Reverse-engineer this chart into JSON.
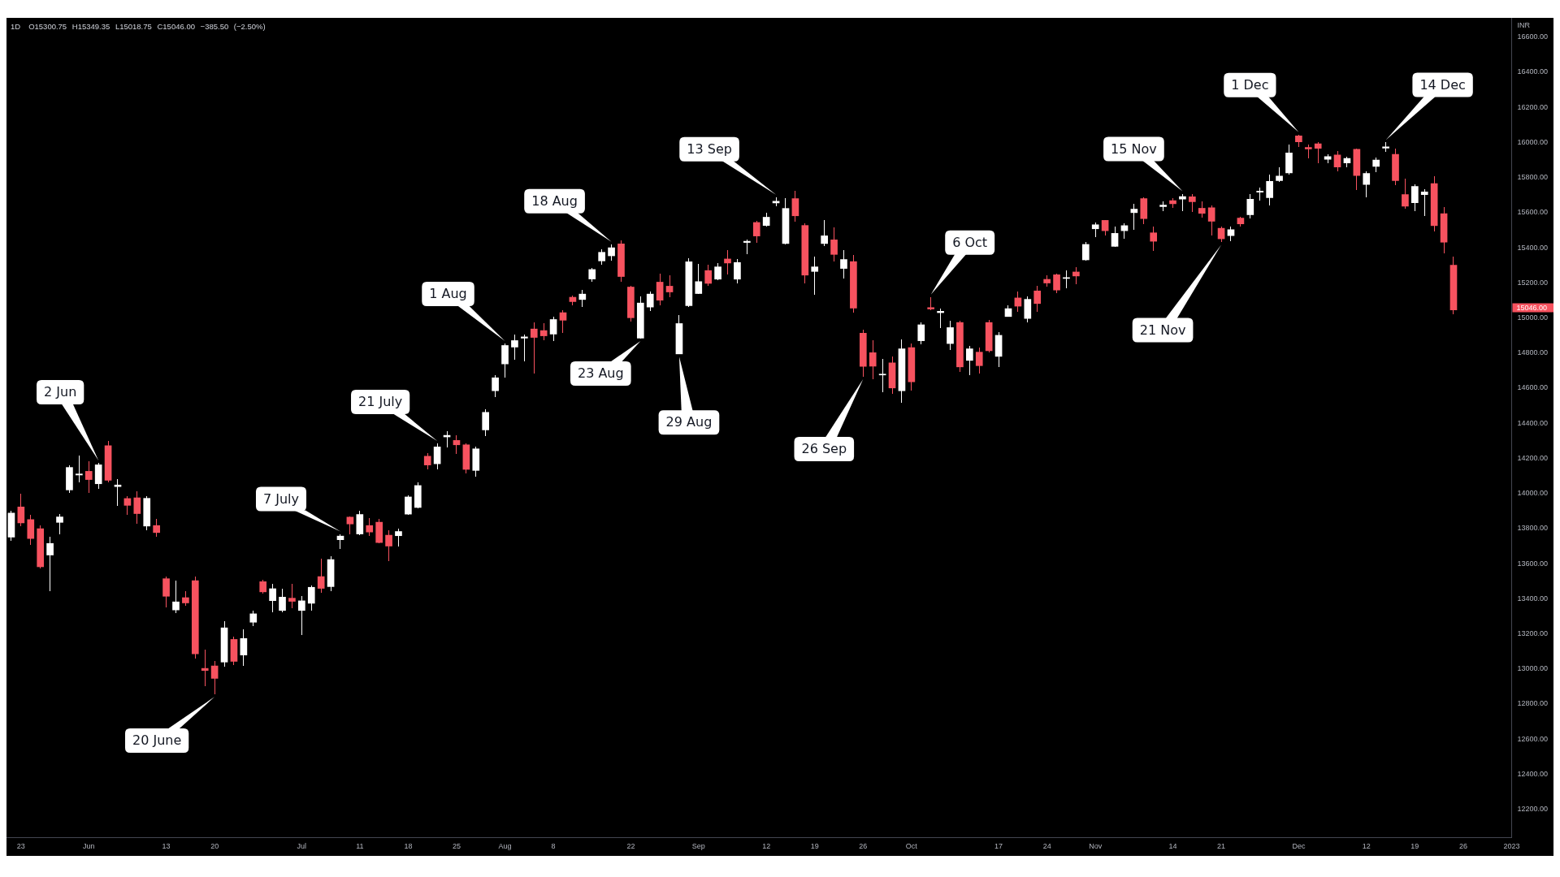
{
  "chart_data": {
    "type": "candlestick",
    "title": "1D",
    "subtitle": "O15300.75 H15349.35 L15018.75 C15046.00 −385.50 (−2.50%)",
    "ylabel": "INR",
    "categories": [
      null,
      "23",
      null,
      null,
      null,
      null,
      null,
      null,
      "Jun",
      null,
      null,
      null,
      null,
      null,
      null,
      null,
      "13",
      null,
      null,
      null,
      null,
      "20",
      null,
      null,
      null,
      null,
      null,
      null,
      null,
      null,
      "Jul",
      null,
      null,
      null,
      null,
      null,
      "11",
      null,
      null,
      null,
      null,
      "18",
      null,
      null,
      null,
      null,
      "25",
      null,
      null,
      null,
      null,
      "Aug",
      null,
      null,
      null,
      null,
      "8",
      null,
      null,
      null,
      null,
      null,
      null,
      null,
      "22",
      null,
      null,
      null,
      null,
      null,
      null,
      "Sep",
      null,
      null,
      null,
      null,
      null,
      null,
      "12",
      null,
      null,
      null,
      null,
      "19",
      null,
      null,
      null,
      null,
      "26",
      null,
      null,
      null,
      null,
      "Oct",
      null,
      null,
      null,
      null,
      null,
      null,
      null,
      null,
      "17",
      null,
      null,
      null,
      null,
      "24",
      null,
      null,
      null,
      null,
      "Nov",
      null,
      null,
      null,
      null,
      null,
      null,
      null,
      "14",
      null,
      null,
      null,
      null,
      "21",
      null,
      null,
      null,
      null,
      null,
      null,
      null,
      "Dec",
      null,
      null,
      null,
      null,
      null,
      null,
      "12",
      null,
      null,
      null,
      null,
      "19",
      null,
      null,
      null,
      null,
      "26",
      null,
      null,
      null,
      null,
      "2023"
    ],
    "ohlc": [
      [
        13751,
        13900,
        13731,
        13888
      ],
      [
        13923,
        14000,
        13811,
        13832
      ],
      [
        13851,
        13880,
        13708,
        13743
      ],
      [
        13799,
        13816,
        13571,
        13582
      ],
      [
        13649,
        13755,
        13443,
        13715
      ],
      [
        13835,
        13882,
        13766,
        13866
      ],
      [
        14020,
        14159,
        14005,
        14148
      ],
      [
        14105,
        14214,
        14062,
        14111
      ],
      [
        14126,
        14185,
        14005,
        14079
      ],
      [
        14055,
        14174,
        14028,
        14163
      ],
      [
        14272,
        14297,
        14063,
        14075
      ],
      [
        14039,
        14080,
        13929,
        14048
      ],
      [
        13971,
        13986,
        13880,
        13932
      ],
      [
        13975,
        14014,
        13829,
        13885
      ],
      [
        13814,
        13986,
        13788,
        13972
      ],
      [
        13817,
        13857,
        13752,
        13777
      ],
      [
        13514,
        13525,
        13352,
        13414
      ],
      [
        13336,
        13503,
        13320,
        13382
      ],
      [
        13406,
        13445,
        13362,
        13376
      ],
      [
        13503,
        13525,
        13060,
        13086
      ],
      [
        13003,
        13108,
        12900,
        12991
      ],
      [
        13017,
        13046,
        12855,
        12946
      ],
      [
        13039,
        13270,
        13012,
        13234
      ],
      [
        13168,
        13182,
        13023,
        13043
      ],
      [
        13079,
        13226,
        13016,
        13173
      ],
      [
        13266,
        13331,
        13245,
        13314
      ],
      [
        13497,
        13506,
        13428,
        13439
      ],
      [
        13389,
        13485,
        13325,
        13457
      ],
      [
        13333,
        13456,
        13325,
        13409
      ],
      [
        13403,
        13486,
        13348,
        13385
      ],
      [
        13333,
        13416,
        13191,
        13388
      ],
      [
        13374,
        13477,
        13334,
        13465
      ],
      [
        13526,
        13626,
        13434,
        13459
      ],
      [
        13469,
        13643,
        13442,
        13623
      ],
      [
        13736,
        13769,
        13685,
        13757
      ],
      [
        13865,
        13869,
        13769,
        13826
      ],
      [
        13769,
        13899,
        13762,
        13880
      ],
      [
        13817,
        13860,
        13757,
        13780
      ],
      [
        13836,
        13854,
        13716,
        13720
      ],
      [
        13762,
        13792,
        13613,
        13700
      ],
      [
        13759,
        13799,
        13696,
        13783
      ],
      [
        13882,
        13989,
        13876,
        13980
      ],
      [
        13920,
        14062,
        13916,
        14045
      ],
      [
        14212,
        14231,
        14139,
        14162
      ],
      [
        14169,
        14285,
        14137,
        14265
      ],
      [
        14322,
        14355,
        14262,
        14331
      ],
      [
        14302,
        14331,
        14226,
        14277
      ],
      [
        14277,
        14285,
        14116,
        14137
      ],
      [
        14131,
        14269,
        14097,
        14254
      ],
      [
        14362,
        14480,
        14328,
        14462
      ],
      [
        14585,
        14675,
        14551,
        14659
      ],
      [
        14738,
        14854,
        14662,
        14843
      ],
      [
        14834,
        14905,
        14762,
        14871
      ],
      [
        14885,
        14905,
        14751,
        14892
      ],
      [
        14937,
        14974,
        14685,
        14889
      ],
      [
        14928,
        14969,
        14872,
        14898
      ],
      [
        14908,
        15008,
        14867,
        14991
      ],
      [
        15030,
        15042,
        14916,
        14987
      ],
      [
        15118,
        15127,
        15070,
        15093
      ],
      [
        15105,
        15161,
        15061,
        15136
      ],
      [
        15222,
        15285,
        15204,
        15276
      ],
      [
        15325,
        15393,
        15305,
        15374
      ],
      [
        15354,
        15420,
        15327,
        15400
      ],
      [
        15422,
        15444,
        15208,
        15236
      ],
      [
        15176,
        15182,
        14978,
        15001
      ],
      [
        14885,
        15125,
        14882,
        15085
      ],
      [
        15062,
        15151,
        15038,
        15136
      ],
      [
        15204,
        15253,
        15074,
        15101
      ],
      [
        15181,
        15244,
        15116,
        15148
      ],
      [
        14795,
        15016,
        14793,
        14968
      ],
      [
        15070,
        15339,
        15062,
        15320
      ],
      [
        15139,
        15308,
        15136,
        15207
      ],
      [
        15270,
        15305,
        15184,
        15197
      ],
      [
        15221,
        15313,
        15215,
        15291
      ],
      [
        15336,
        15385,
        15247,
        15313
      ],
      [
        15221,
        15334,
        15199,
        15316
      ],
      [
        15430,
        15445,
        15365,
        15437
      ],
      [
        15544,
        15554,
        15427,
        15467
      ],
      [
        15527,
        15599,
        15520,
        15574
      ],
      [
        15655,
        15688,
        15636,
        15665
      ],
      [
        15424,
        15685,
        15421,
        15624
      ],
      [
        15680,
        15723,
        15547,
        15582
      ],
      [
        15527,
        15539,
        15196,
        15244
      ],
      [
        15265,
        15350,
        15134,
        15291
      ],
      [
        15424,
        15556,
        15408,
        15468
      ],
      [
        15445,
        15516,
        15321,
        15362
      ],
      [
        15282,
        15387,
        15224,
        15333
      ],
      [
        15321,
        15359,
        15030,
        15056
      ],
      [
        14913,
        14931,
        14665,
        14724
      ],
      [
        14802,
        14873,
        14651,
        14725
      ],
      [
        14675,
        14765,
        14575,
        14680
      ],
      [
        14744,
        14782,
        14567,
        14601
      ],
      [
        14585,
        14878,
        14516,
        14824
      ],
      [
        14831,
        14855,
        14585,
        14636
      ],
      [
        14870,
        14975,
        14850,
        14961
      ],
      [
        15059,
        15119,
        15042,
        15051
      ],
      [
        15030,
        15054,
        14944,
        15038
      ],
      [
        14854,
        14985,
        14818,
        14945
      ],
      [
        14974,
        14984,
        14693,
        14721
      ],
      [
        14758,
        14839,
        14675,
        14824
      ],
      [
        14805,
        14830,
        14682,
        14728
      ],
      [
        14974,
        14987,
        14804,
        14813
      ],
      [
        14781,
        14919,
        14719,
        14901
      ],
      [
        15008,
        15070,
        15005,
        15053
      ],
      [
        15114,
        15151,
        15037,
        15067
      ],
      [
        14997,
        15123,
        14977,
        15106
      ],
      [
        15154,
        15182,
        15034,
        15082
      ],
      [
        15220,
        15245,
        15177,
        15199
      ],
      [
        15246,
        15254,
        15143,
        15159
      ],
      [
        15225,
        15273,
        15170,
        15230
      ],
      [
        15262,
        15289,
        15191,
        15239
      ],
      [
        15331,
        15434,
        15325,
        15419
      ],
      [
        15508,
        15542,
        15459,
        15531
      ],
      [
        15556,
        15560,
        15471,
        15497
      ],
      [
        15408,
        15519,
        15403,
        15482
      ],
      [
        15497,
        15539,
        15451,
        15526
      ],
      [
        15600,
        15649,
        15503,
        15620
      ],
      [
        15680,
        15689,
        15534,
        15566
      ],
      [
        15485,
        15522,
        15382,
        15437
      ],
      [
        15634,
        15662,
        15608,
        15643
      ],
      [
        15668,
        15682,
        15626,
        15651
      ],
      [
        15677,
        15708,
        15608,
        15692
      ],
      [
        15691,
        15708,
        15605,
        15662
      ],
      [
        15625,
        15662,
        15572,
        15596
      ],
      [
        15628,
        15643,
        15469,
        15551
      ],
      [
        15511,
        15520,
        15431,
        15451
      ],
      [
        15469,
        15520,
        15439,
        15503
      ],
      [
        15569,
        15574,
        15519,
        15536
      ],
      [
        15588,
        15705,
        15566,
        15677
      ],
      [
        15717,
        15741,
        15669,
        15723
      ],
      [
        15685,
        15815,
        15643,
        15778
      ],
      [
        15783,
        15858,
        15777,
        15808
      ],
      [
        15826,
        15989,
        15815,
        15940
      ],
      [
        16037,
        16045,
        15974,
        16003
      ],
      [
        15972,
        15989,
        15908,
        15963
      ],
      [
        15992,
        16000,
        15881,
        15966
      ],
      [
        15904,
        15934,
        15883,
        15920
      ],
      [
        15929,
        15949,
        15835,
        15860
      ],
      [
        15883,
        15918,
        15858,
        15909
      ],
      [
        15961,
        15965,
        15728,
        15812
      ],
      [
        15761,
        15835,
        15688,
        15823
      ],
      [
        15864,
        15915,
        15831,
        15900
      ],
      [
        15968,
        16000,
        15946,
        15975
      ],
      [
        15932,
        15966,
        15757,
        15783
      ],
      [
        15703,
        15795,
        15623,
        15637
      ],
      [
        15657,
        15761,
        15608,
        15749
      ],
      [
        15703,
        15735,
        15581,
        15718
      ],
      [
        15766,
        15808,
        15495,
        15526
      ],
      [
        15594,
        15634,
        15369,
        15431.5
      ],
      [
        15300.75,
        15349.35,
        15018.75,
        15046
      ],
      null,
      null,
      null,
      null,
      null,
      null
    ],
    "colors": [
      "#ffffff",
      "#f7525f",
      "#f7525f",
      "#f7525f",
      "#ffffff",
      "#ffffff",
      "#ffffff",
      "#ffffff",
      "#f7525f",
      "#ffffff",
      "#f7525f",
      "#ffffff",
      "#f7525f",
      "#f7525f",
      "#ffffff",
      "#f7525f",
      "#f7525f",
      "#ffffff",
      "#f7525f",
      "#f7525f",
      "#f7525f",
      "#f7525f",
      "#ffffff",
      "#f7525f",
      "#ffffff",
      "#ffffff",
      "#f7525f",
      "#ffffff",
      "#ffffff",
      "#f7525f",
      "#ffffff",
      "#ffffff",
      "#f7525f",
      "#ffffff",
      "#ffffff",
      "#f7525f",
      "#ffffff",
      "#f7525f",
      "#f7525f",
      "#f7525f",
      "#ffffff",
      "#ffffff",
      "#ffffff",
      "#f7525f",
      "#ffffff",
      "#ffffff",
      "#f7525f",
      "#f7525f",
      "#ffffff",
      "#ffffff",
      "#ffffff",
      "#ffffff",
      "#ffffff",
      "#ffffff",
      "#f7525f",
      "#f7525f",
      "#ffffff",
      "#f7525f",
      "#f7525f",
      "#ffffff",
      "#ffffff",
      "#ffffff",
      "#ffffff",
      "#f7525f",
      "#f7525f",
      "#ffffff",
      "#ffffff",
      "#f7525f",
      "#f7525f",
      "#ffffff",
      "#ffffff",
      "#ffffff",
      "#f7525f",
      "#ffffff",
      "#f7525f",
      "#ffffff",
      "#ffffff",
      "#f7525f",
      "#ffffff",
      "#ffffff",
      "#ffffff",
      "#f7525f",
      "#f7525f",
      "#ffffff",
      "#ffffff",
      "#f7525f",
      "#ffffff",
      "#f7525f",
      "#f7525f",
      "#f7525f",
      "#ffffff",
      "#f7525f",
      "#ffffff",
      "#f7525f",
      "#ffffff",
      "#f7525f",
      "#ffffff",
      "#ffffff",
      "#f7525f",
      "#ffffff",
      "#f7525f",
      "#f7525f",
      "#ffffff",
      "#ffffff",
      "#f7525f",
      "#ffffff",
      "#f7525f",
      "#f7525f",
      "#f7525f",
      "#ffffff",
      "#f7525f",
      "#ffffff",
      "#ffffff",
      "#f7525f",
      "#ffffff",
      "#ffffff",
      "#ffffff",
      "#f7525f",
      "#f7525f",
      "#ffffff",
      "#f7525f",
      "#ffffff",
      "#f7525f",
      "#f7525f",
      "#f7525f",
      "#f7525f",
      "#ffffff",
      "#f7525f",
      "#ffffff",
      "#ffffff",
      "#ffffff",
      "#ffffff",
      "#ffffff",
      "#f7525f",
      "#f7525f",
      "#f7525f",
      "#ffffff",
      "#f7525f",
      "#ffffff",
      "#f7525f",
      "#ffffff",
      "#ffffff",
      "#ffffff",
      "#f7525f",
      "#f7525f",
      "#ffffff",
      "#ffffff",
      "#f7525f",
      "#f7525f",
      "#f7525f",
      null,
      null,
      null,
      null,
      null,
      null
    ],
    "ylim": [
      12040,
      16710
    ],
    "yticks": [
      {
        "value": 12200,
        "label": "12200.00"
      },
      {
        "value": 12400,
        "label": "12400.00"
      },
      {
        "value": 12600,
        "label": "12600.00"
      },
      {
        "value": 12800,
        "label": "12800.00"
      },
      {
        "value": 13000,
        "label": "13000.00"
      },
      {
        "value": 13200,
        "label": "13200.00"
      },
      {
        "value": 13400,
        "label": "13400.00"
      },
      {
        "value": 13600,
        "label": "13600.00"
      },
      {
        "value": 13800,
        "label": "13800.00"
      },
      {
        "value": 14000,
        "label": "14000.00"
      },
      {
        "value": 14200,
        "label": "14200.00"
      },
      {
        "value": 14400,
        "label": "14400.00"
      },
      {
        "value": 14600,
        "label": "14600.00"
      },
      {
        "value": 14800,
        "label": "14800.00"
      },
      {
        "value": 15000,
        "label": "15000.00"
      },
      {
        "value": 15200,
        "label": "15200.00"
      },
      {
        "value": 15400,
        "label": "15400.00"
      },
      {
        "value": 15600,
        "label": "15600.00"
      },
      {
        "value": 15800,
        "label": "15800.00"
      },
      {
        "value": 16000,
        "label": "16000.00"
      },
      {
        "value": 16200,
        "label": "16200.00"
      },
      {
        "value": 16400,
        "label": "16400.00"
      },
      {
        "value": 16600,
        "label": "16600.00"
      }
    ],
    "annotations": [
      "2 Jun",
      "20 June",
      "7 July",
      "21 July",
      "1 Aug",
      "18 Aug",
      "23 Aug",
      "29 Aug",
      "13 Sep",
      "26 Sep",
      "6 Oct",
      "15 Nov",
      "21 Nov",
      "1 Dec",
      "14 Dec",
      "15046.00"
    ]
  }
}
